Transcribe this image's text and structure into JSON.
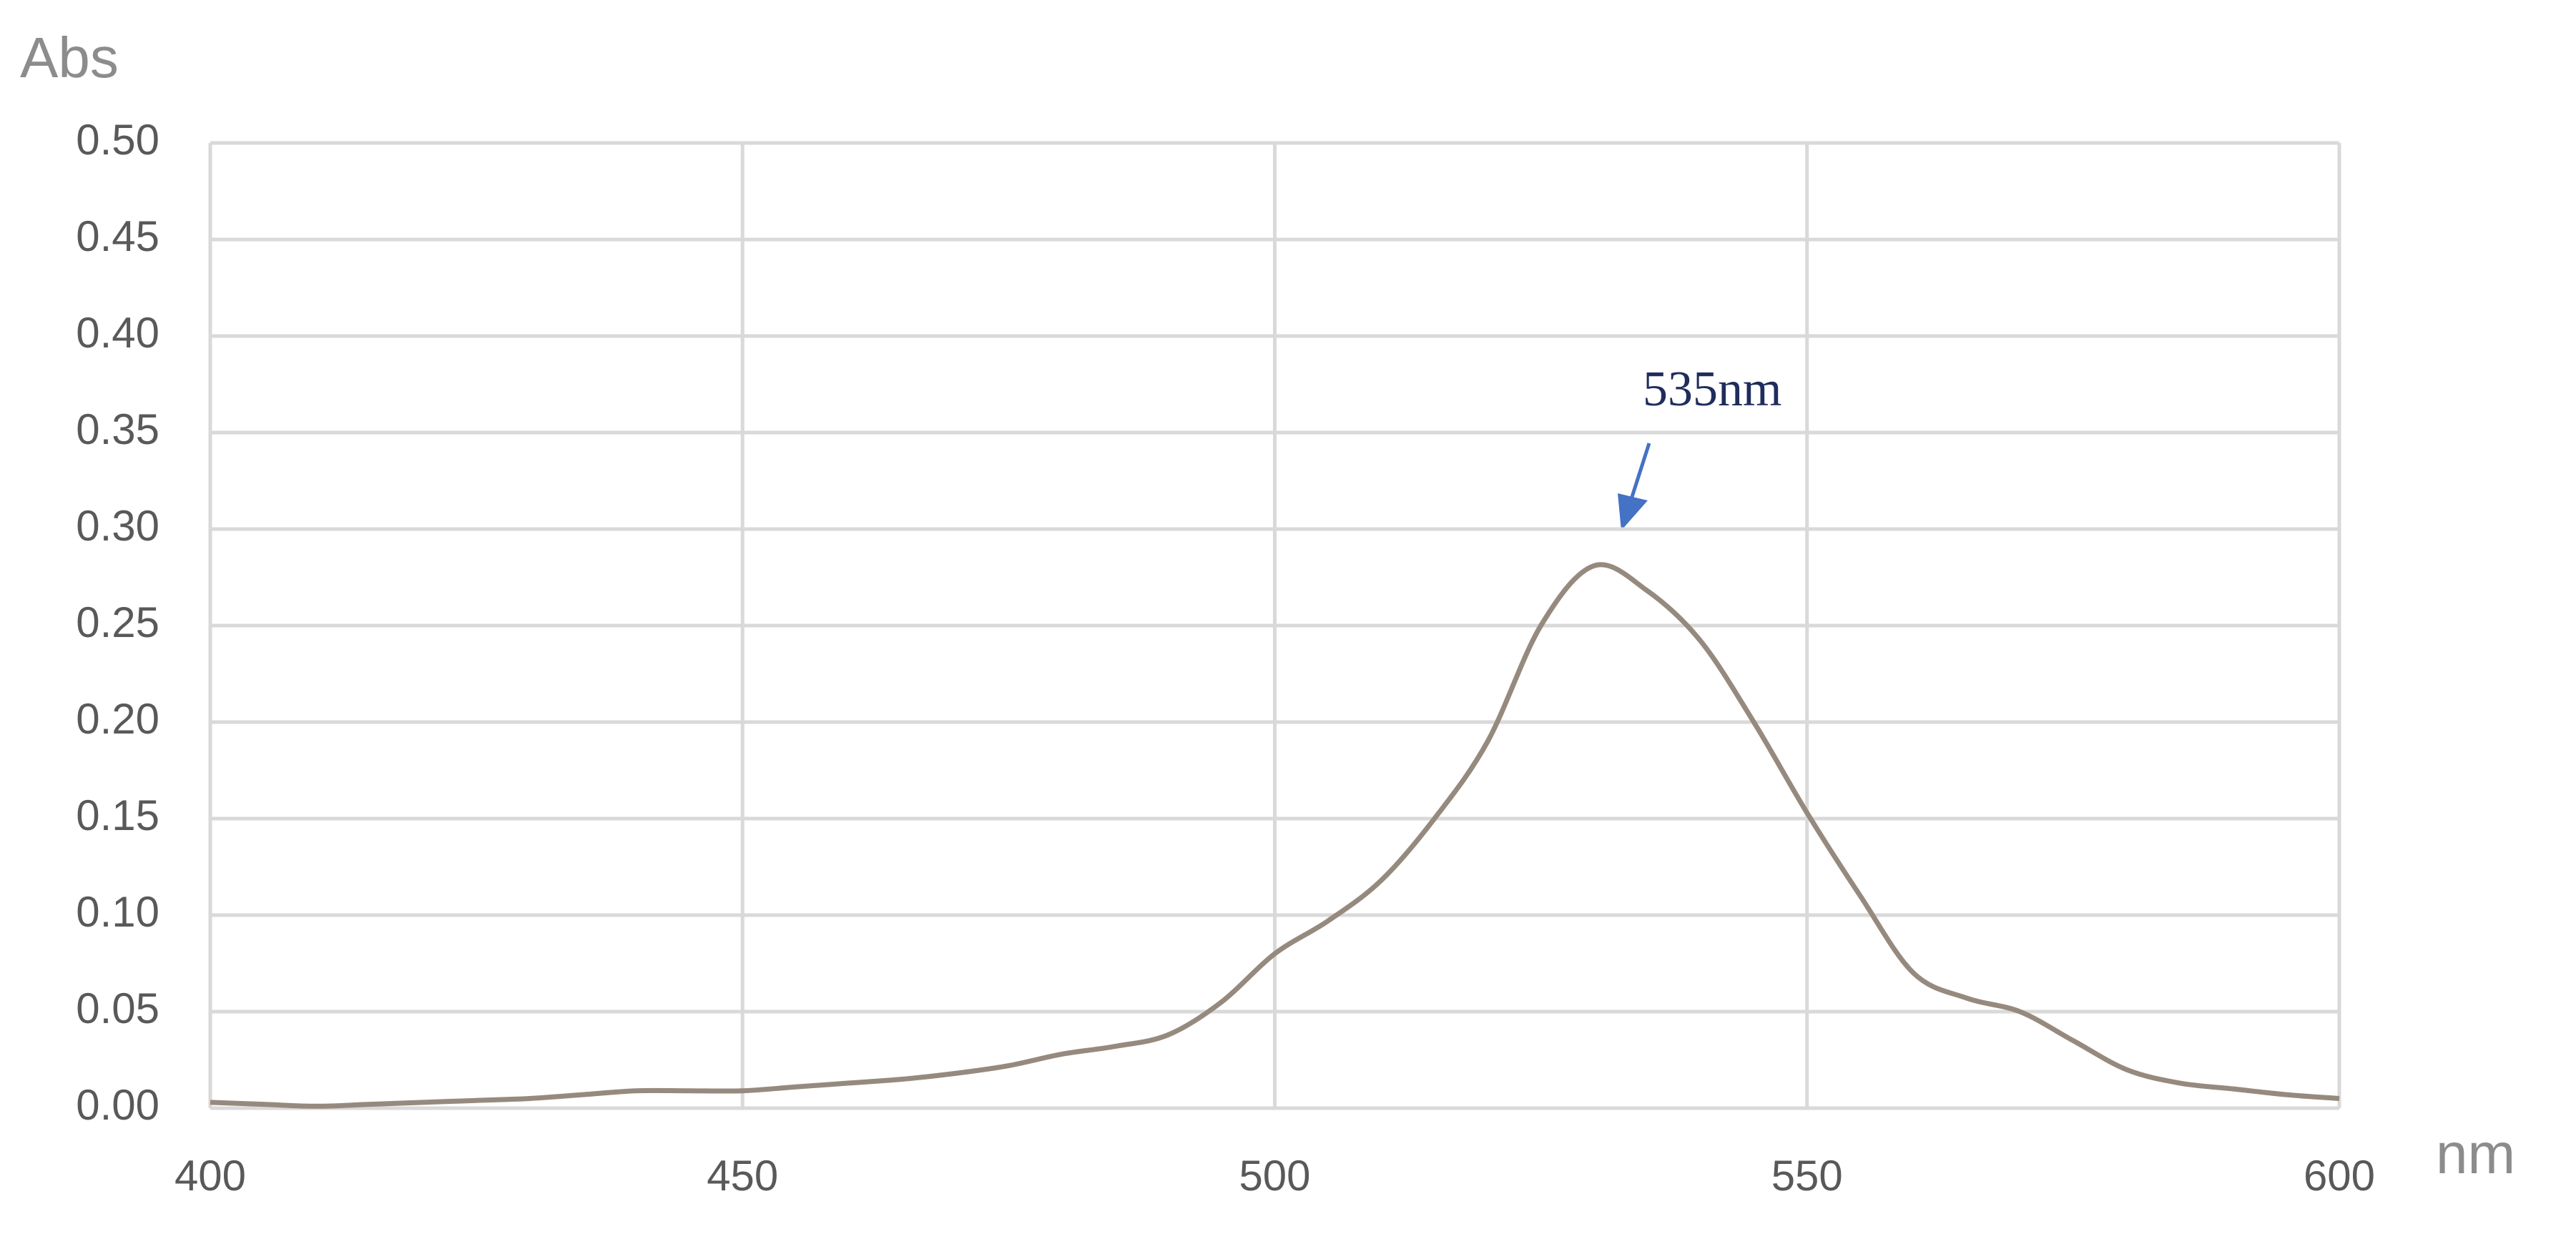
{
  "chart_data": {
    "type": "line",
    "y_label": "Abs",
    "x_label": "nm",
    "annotation": "535nm",
    "x": [
      400,
      405,
      410,
      415,
      420,
      425,
      430,
      435,
      440,
      445,
      450,
      455,
      460,
      465,
      470,
      475,
      480,
      485,
      490,
      495,
      500,
      505,
      510,
      515,
      520,
      525,
      530,
      535,
      540,
      545,
      550,
      555,
      560,
      565,
      570,
      575,
      580,
      585,
      590,
      595,
      600
    ],
    "series": [
      {
        "color": "#968a7e",
        "values": [
          0.003,
          0.002,
          0.001,
          0.002,
          0.003,
          0.004,
          0.005,
          0.007,
          0.009,
          0.009,
          0.009,
          0.011,
          0.013,
          0.015,
          0.018,
          0.022,
          0.028,
          0.032,
          0.038,
          0.055,
          0.08,
          0.097,
          0.118,
          0.15,
          0.19,
          0.25,
          0.281,
          0.268,
          0.242,
          0.2,
          0.153,
          0.11,
          0.07,
          0.057,
          0.05,
          0.035,
          0.02,
          0.013,
          0.01,
          0.007,
          0.005
        ]
      }
    ],
    "xlim": [
      400,
      600
    ],
    "xticks": [
      400,
      450,
      500,
      550,
      600
    ],
    "ylim": [
      0,
      0.5
    ],
    "yticks": [
      {
        "value": 0,
        "label": "0.00"
      },
      {
        "value": 0.05,
        "label": "0.05"
      },
      {
        "value": 0.1,
        "label": "0.10"
      },
      {
        "value": 0.15,
        "label": "0.15"
      },
      {
        "value": 0.2,
        "label": "0.20"
      },
      {
        "value": 0.25,
        "label": "0.25"
      },
      {
        "value": 0.3,
        "label": "0.30"
      },
      {
        "value": 0.35,
        "label": "0.35"
      },
      {
        "value": 0.4,
        "label": "0.40"
      },
      {
        "value": 0.45,
        "label": "0.45"
      },
      {
        "value": 0.5,
        "label": "0.50"
      }
    ],
    "grid": true
  }
}
